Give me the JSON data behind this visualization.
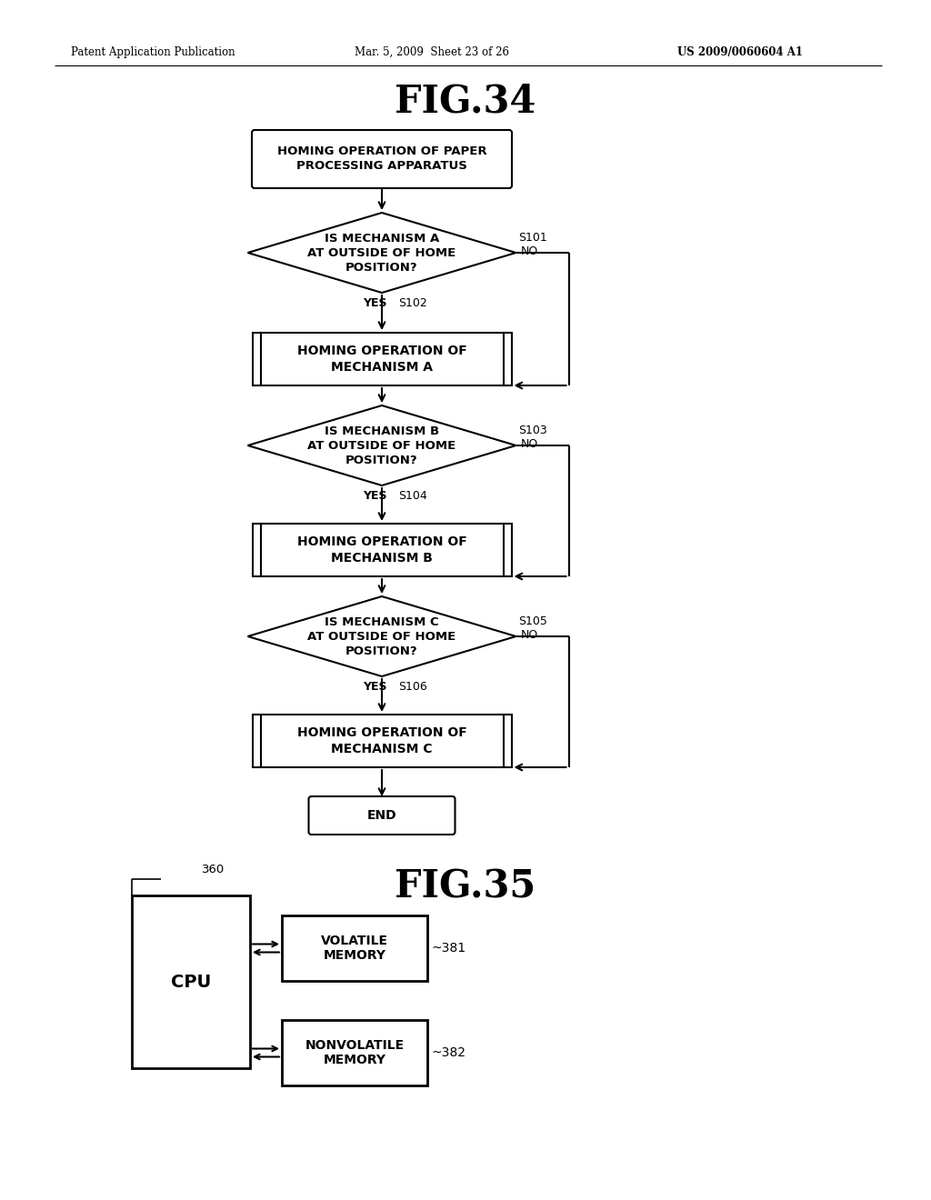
{
  "bg_color": "#ffffff",
  "header_left": "Patent Application Publication",
  "header_mid": "Mar. 5, 2009  Sheet 23 of 26",
  "header_right": "US 2009/0060604 A1",
  "fig34_title": "FIG.34",
  "fig35_title": "FIG.35",
  "flowchart": {
    "start_text": "HOMING OPERATION OF PAPER\nPROCESSING APPARATUS",
    "diamond1_text": "IS MECHANISM A\nAT OUTSIDE OF HOME\nPOSITION?",
    "diamond1_label": "S101",
    "process1_text": "HOMING OPERATION OF\nMECHANISM A",
    "process1_label": "S102",
    "diamond2_text": "IS MECHANISM B\nAT OUTSIDE OF HOME\nPOSITION?",
    "diamond2_label": "S103",
    "process2_text": "HOMING OPERATION OF\nMECHANISM B",
    "process2_label": "S104",
    "diamond3_text": "IS MECHANISM C\nAT OUTSIDE OF HOME\nPOSITION?",
    "diamond3_label": "S105",
    "process3_text": "HOMING OPERATION OF\nMECHANISM C",
    "process3_label": "S106",
    "end_text": "END"
  },
  "block_diagram": {
    "cpu_label": "CPU",
    "cpu_ref": "360",
    "mem1_label": "VOLATILE\nMEMORY",
    "mem1_ref": "381",
    "mem2_label": "NONVOLATILE\nMEMORY",
    "mem2_ref": "382"
  }
}
